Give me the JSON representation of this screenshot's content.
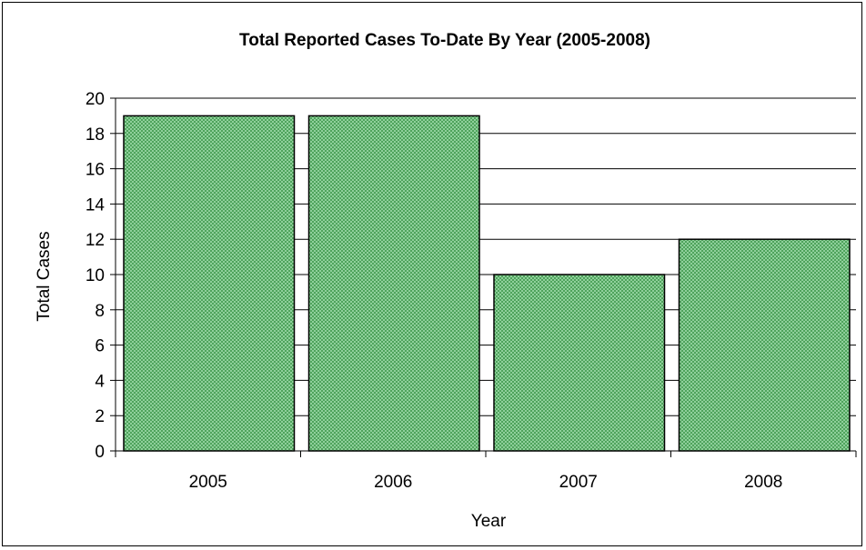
{
  "chart_data": {
    "type": "bar",
    "title": "Total Reported Cases To-Date By Year (2005-2008)",
    "xlabel": "Year",
    "ylabel": "Total Cases",
    "categories": [
      "2005",
      "2006",
      "2007",
      "2008"
    ],
    "values": [
      19,
      19,
      10,
      12
    ],
    "ylim": [
      0,
      20
    ],
    "yticks": [
      "0",
      "2",
      "4",
      "6",
      "8",
      "10",
      "12",
      "14",
      "16",
      "18",
      "20"
    ],
    "grid": true,
    "legend": "none",
    "bar_color": "#7cc38a",
    "bar_pattern_color": "#3f8f4c"
  }
}
